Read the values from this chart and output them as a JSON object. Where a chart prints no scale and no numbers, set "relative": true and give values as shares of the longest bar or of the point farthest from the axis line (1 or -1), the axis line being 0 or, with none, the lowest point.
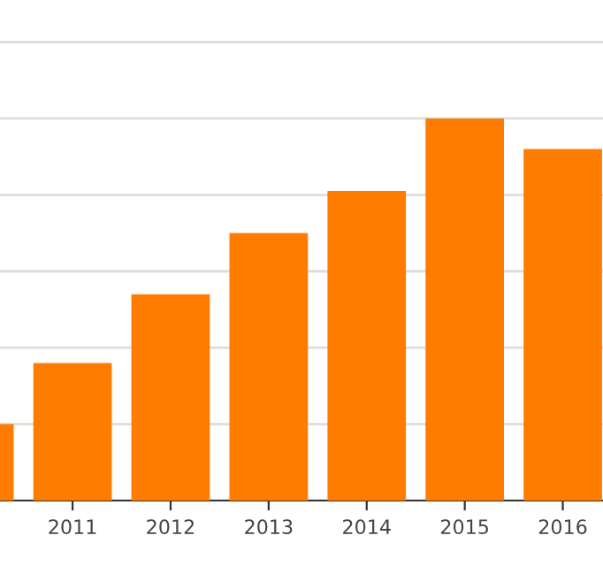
{
  "chart_data": {
    "type": "bar",
    "relative": true,
    "categories": [
      null,
      "2011",
      "2012",
      "2013",
      "2014",
      "2015",
      "2016"
    ],
    "values": [
      0.2,
      0.36,
      0.54,
      0.7,
      0.81,
      1,
      0.92
    ],
    "color": "#ff7c00",
    "grid": "y"
  }
}
